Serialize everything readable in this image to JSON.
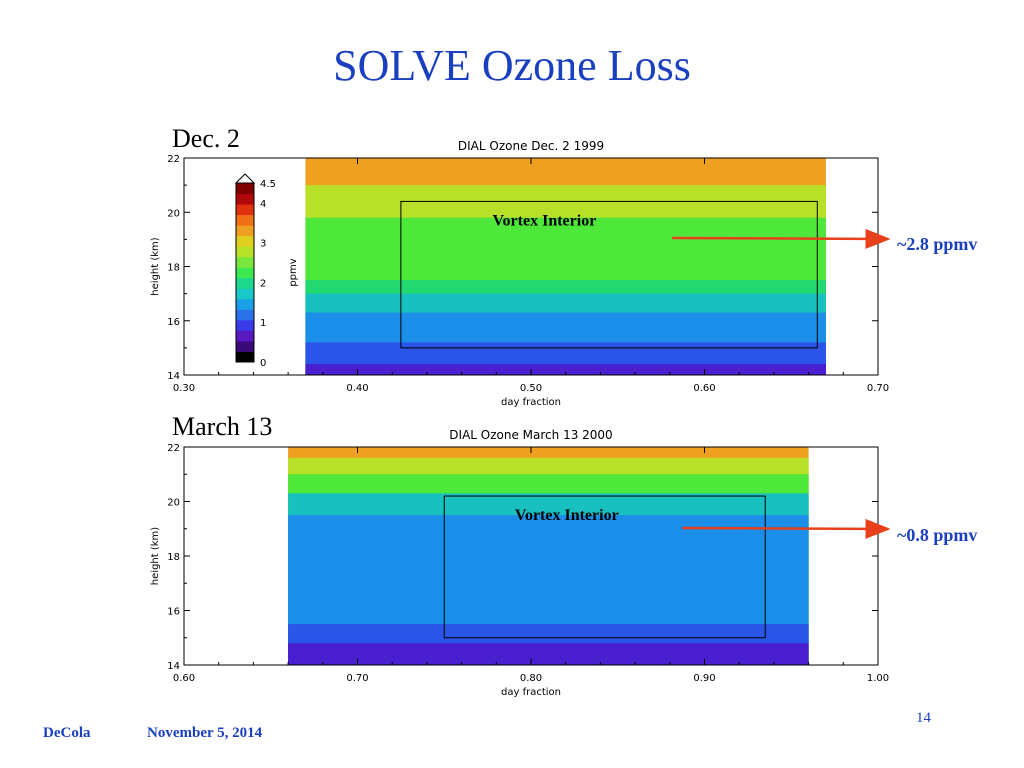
{
  "slide": {
    "title": "SOLVE Ozone Loss",
    "footer_author": "DeCola",
    "footer_date": "November 5, 2014",
    "page_number": "14"
  },
  "annotations": {
    "dec_label": "Dec. 2",
    "mar_label": "March 13",
    "dec_ppmv": "~2.8 ppmv",
    "mar_ppmv": "~0.8 ppmv",
    "arrow_color": "#e8401a",
    "label_color": "#1a3fbf"
  },
  "chart_data": [
    {
      "type": "heatmap",
      "title": "DIAL Ozone Dec. 2  1999",
      "xlabel": "day fraction",
      "ylabel": "height (km)",
      "xlim": [
        0.3,
        0.7
      ],
      "ylim": [
        14,
        22
      ],
      "xticks": [
        "0.30",
        "0.40",
        "0.50",
        "0.60",
        "0.70"
      ],
      "yticks": [
        "14",
        "16",
        "18",
        "20",
        "22"
      ],
      "data_xrange": [
        0.37,
        0.67
      ],
      "levels": [
        {
          "max_height_km": 14.4,
          "ppmv": 0.6,
          "color": "#4a1fd0"
        },
        {
          "max_height_km": 15.2,
          "ppmv": 0.9,
          "color": "#2a55e8"
        },
        {
          "max_height_km": 16.3,
          "ppmv": 1.3,
          "color": "#1a8ee8"
        },
        {
          "max_height_km": 17.0,
          "ppmv": 1.7,
          "color": "#19c0c0"
        },
        {
          "max_height_km": 17.5,
          "ppmv": 2.1,
          "color": "#22d870"
        },
        {
          "max_height_km": 19.8,
          "ppmv": 2.8,
          "color": "#4ee83a"
        },
        {
          "max_height_km": 21.0,
          "ppmv": 3.0,
          "color": "#b8e028"
        },
        {
          "max_height_km": 22.0,
          "ppmv": 3.5,
          "color": "#f0a020"
        }
      ],
      "box": {
        "label": "Vortex Interior",
        "x": [
          0.425,
          0.665
        ],
        "y": [
          15.0,
          20.4
        ]
      },
      "colorbar": {
        "label": "ppmv",
        "ticks": [
          "0",
          "1",
          "2",
          "3",
          "4",
          "4.5"
        ],
        "tick_values": [
          0,
          1,
          2,
          3,
          4,
          4.5
        ],
        "colors": [
          "#000000",
          "#3a0a7a",
          "#5a18c0",
          "#3a3ae8",
          "#2a70e8",
          "#1aa0e8",
          "#19c8c8",
          "#1ed890",
          "#3ee850",
          "#7ae83a",
          "#b8e028",
          "#e0d020",
          "#f0a020",
          "#f07018",
          "#e03010",
          "#b00808",
          "#800000"
        ]
      }
    },
    {
      "type": "heatmap",
      "title": "DIAL Ozone March 13  2000",
      "xlabel": "day fraction",
      "ylabel": "height (km)",
      "xlim": [
        0.6,
        1.0
      ],
      "ylim": [
        14,
        22
      ],
      "xticks": [
        "0.60",
        "0.70",
        "0.80",
        "0.90",
        "1.00"
      ],
      "yticks": [
        "14",
        "16",
        "18",
        "20",
        "22"
      ],
      "data_xrange": [
        0.66,
        0.96
      ],
      "levels": [
        {
          "max_height_km": 14.8,
          "ppmv": 0.5,
          "color": "#4a1fd0"
        },
        {
          "max_height_km": 15.5,
          "ppmv": 0.7,
          "color": "#2a55e8"
        },
        {
          "max_height_km": 19.5,
          "ppmv": 0.8,
          "color": "#1a8ee8"
        },
        {
          "max_height_km": 20.3,
          "ppmv": 1.5,
          "color": "#19c0c0"
        },
        {
          "max_height_km": 21.0,
          "ppmv": 2.2,
          "color": "#4ee83a"
        },
        {
          "max_height_km": 21.6,
          "ppmv": 2.9,
          "color": "#b8e028"
        },
        {
          "max_height_km": 22.0,
          "ppmv": 3.4,
          "color": "#f0a020"
        }
      ],
      "box": {
        "label": "Vortex Interior",
        "x": [
          0.75,
          0.935
        ],
        "y": [
          15.0,
          20.2
        ]
      }
    }
  ]
}
